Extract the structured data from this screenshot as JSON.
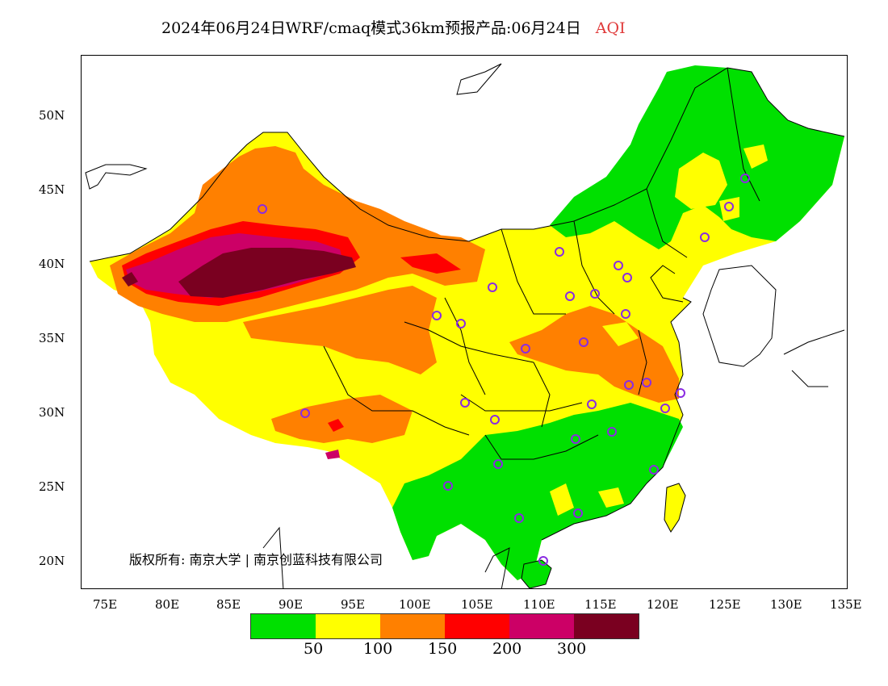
{
  "header": {
    "title": "2024年06月24日WRF/cmaq模式36km预报产品:06月24日",
    "metric": "AQI"
  },
  "map": {
    "lat_labels": [
      "50N",
      "45N",
      "40N",
      "35N",
      "30N",
      "25N",
      "20N"
    ],
    "lon_labels": [
      "75E",
      "80E",
      "85E",
      "90E",
      "95E",
      "100E",
      "105E",
      "110E",
      "115E",
      "120E",
      "125E",
      "130E",
      "135E"
    ],
    "lon_range": [
      73,
      135
    ],
    "lat_range": [
      18,
      54
    ],
    "copyright": "版权所有: 南京大学 | 南京创蓝科技有限公司"
  },
  "legend": {
    "colors": [
      "#00e000",
      "#ffff00",
      "#ff8000",
      "#ff0000",
      "#cc0066",
      "#7a0020"
    ],
    "labels": [
      "50",
      "100",
      "150",
      "200",
      "300"
    ]
  },
  "colors": {
    "good": "#00e000",
    "moderate": "#ffff00",
    "sensitive": "#ff8000",
    "unhealthy": "#ff0000",
    "very_unhealthy": "#cc0066",
    "hazardous": "#7a0020",
    "station_marker": "#8a2be2"
  }
}
